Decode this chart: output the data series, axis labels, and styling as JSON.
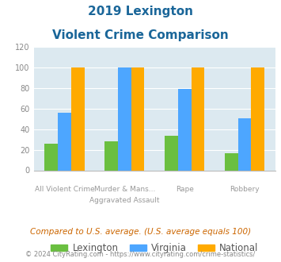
{
  "title_line1": "2019 Lexington",
  "title_line2": "Violent Crime Comparison",
  "line1_labels": [
    "",
    "Murder & Mans...",
    "",
    ""
  ],
  "line2_labels": [
    "All Violent Crime",
    "Aggravated Assault",
    "Rape",
    "Robbery"
  ],
  "lexington": [
    26,
    28,
    34,
    17
  ],
  "virginia": [
    56,
    100,
    79,
    51
  ],
  "national": [
    100,
    100,
    100,
    100
  ],
  "bar_colors": {
    "lexington": "#6abf40",
    "virginia": "#4da6ff",
    "national": "#ffaa00"
  },
  "ylim": [
    0,
    120
  ],
  "yticks": [
    0,
    20,
    40,
    60,
    80,
    100,
    120
  ],
  "legend_labels": [
    "Lexington",
    "Virginia",
    "National"
  ],
  "footnote1": "Compared to U.S. average. (U.S. average equals 100)",
  "footnote2": "© 2024 CityRating.com - https://www.cityrating.com/crime-statistics/",
  "title_color": "#1a6699",
  "footnote1_color": "#cc6600",
  "footnote2_color": "#888888",
  "plot_bg_color": "#dce9f0",
  "fig_bg_color": "#ffffff"
}
